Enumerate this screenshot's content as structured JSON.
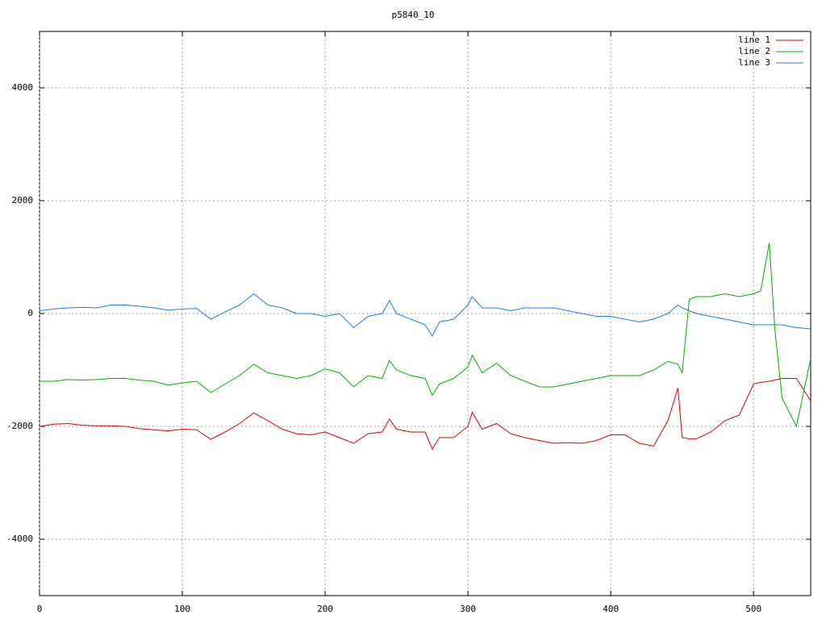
{
  "chart_data": {
    "type": "line",
    "title": "p5840_10",
    "x": [
      0,
      10,
      20,
      30,
      40,
      50,
      60,
      70,
      80,
      90,
      100,
      110,
      120,
      130,
      140,
      150,
      160,
      170,
      180,
      190,
      200,
      210,
      220,
      230,
      240,
      245,
      250,
      260,
      270,
      275,
      280,
      290,
      300,
      303,
      310,
      320,
      330,
      340,
      350,
      360,
      370,
      380,
      390,
      400,
      410,
      420,
      430,
      440,
      447,
      450,
      455,
      460,
      470,
      480,
      490,
      500,
      505,
      511,
      515,
      520,
      530,
      540
    ],
    "series": [
      {
        "name": "line 1",
        "color": "#e00000",
        "values": [
          -2000,
          -1960,
          -1950,
          -1980,
          -1990,
          -1990,
          -2000,
          -2040,
          -2060,
          -2080,
          -2050,
          -2060,
          -2230,
          -2100,
          -1950,
          -1760,
          -1900,
          -2050,
          -2130,
          -2150,
          -2100,
          -2200,
          -2300,
          -2130,
          -2100,
          -1870,
          -2050,
          -2100,
          -2100,
          -2400,
          -2200,
          -2200,
          -2000,
          -1750,
          -2050,
          -1950,
          -2130,
          -2200,
          -2250,
          -2300,
          -2290,
          -2300,
          -2250,
          -2150,
          -2150,
          -2300,
          -2350,
          -1900,
          -1320,
          -2200,
          -2220,
          -2220,
          -2100,
          -1900,
          -1800,
          -1250,
          -1220,
          -1200,
          -1180,
          -1150,
          -1150,
          -1550
        ]
      },
      {
        "name": "line 2",
        "color": "#00b000",
        "values": [
          -1200,
          -1200,
          -1170,
          -1180,
          -1170,
          -1150,
          -1150,
          -1180,
          -1200,
          -1270,
          -1230,
          -1200,
          -1400,
          -1250,
          -1100,
          -900,
          -1050,
          -1100,
          -1150,
          -1100,
          -980,
          -1050,
          -1300,
          -1100,
          -1150,
          -830,
          -1000,
          -1100,
          -1150,
          -1450,
          -1250,
          -1150,
          -950,
          -740,
          -1050,
          -880,
          -1100,
          -1200,
          -1300,
          -1300,
          -1250,
          -1200,
          -1150,
          -1100,
          -1100,
          -1100,
          -1000,
          -850,
          -900,
          -1050,
          250,
          300,
          300,
          350,
          300,
          350,
          400,
          1250,
          -300,
          -1500,
          -2000,
          -800
        ]
      },
      {
        "name": "line 3",
        "color": "#1a7fd8",
        "values": [
          50,
          80,
          100,
          110,
          100,
          150,
          150,
          130,
          100,
          60,
          80,
          90,
          -100,
          30,
          150,
          350,
          150,
          100,
          0,
          0,
          -50,
          0,
          -250,
          -50,
          0,
          230,
          0,
          -100,
          -200,
          -400,
          -150,
          -100,
          150,
          300,
          100,
          100,
          50,
          100,
          100,
          100,
          50,
          0,
          -50,
          -50,
          -100,
          -150,
          -100,
          0,
          150,
          100,
          50,
          0,
          -50,
          -100,
          -150,
          -200,
          -200,
          -200,
          -200,
          -200,
          -250,
          -270
        ]
      }
    ],
    "xlim": [
      0,
      540
    ],
    "xticks": [
      0,
      100,
      200,
      300,
      400,
      500
    ],
    "ylim": [
      -5000,
      5000
    ],
    "yticks": [
      -4000,
      -2000,
      0,
      2000,
      4000
    ],
    "grid": true,
    "legend": "top-right"
  }
}
